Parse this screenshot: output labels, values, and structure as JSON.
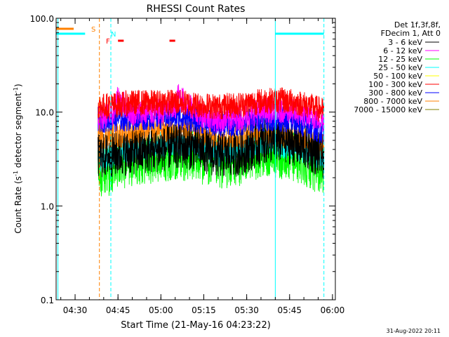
{
  "chart_data": {
    "type": "line",
    "title": "RHESSI Count Rates",
    "xlabel": "Start Time (21-May-16 04:23:22)",
    "ylabel_parts": [
      "Count Rate (s",
      "-1",
      " detector segment",
      "-1",
      ")"
    ],
    "yscale": "log",
    "ylim": [
      0.1,
      100.0
    ],
    "xlim": [
      "04:23:22",
      "06:01:00"
    ],
    "xticks": [
      "04:30",
      "04:45",
      "05:00",
      "05:15",
      "05:30",
      "05:45",
      "06:00"
    ],
    "yticks": [
      "0.1",
      "1.0",
      "10.0",
      "100.0"
    ],
    "legend_header": [
      "Det 1f,3f,8f,",
      "FDecim 1, Att 0"
    ],
    "legend_position": "right",
    "footer": "31-Aug-2022 20:11",
    "series": [
      {
        "name": "3 - 6 keV",
        "color": "#000000",
        "x": [
          "04:38",
          "04:43",
          "04:50",
          "04:58",
          "05:05",
          "05:12",
          "05:20",
          "05:28",
          "05:36",
          "05:43",
          "05:50",
          "05:57"
        ],
        "y": [
          3.4,
          3.5,
          3.7,
          3.9,
          4.3,
          4.2,
          3.4,
          3.6,
          4.8,
          5.0,
          4.3,
          3.3
        ]
      },
      {
        "name": "6 - 12 keV",
        "color": "#ff00ff",
        "x": [
          "04:38",
          "04:43",
          "04:45",
          "04:50",
          "04:58",
          "05:05",
          "05:06",
          "05:12",
          "05:20",
          "05:28",
          "05:36",
          "05:43",
          "05:50",
          "05:57"
        ],
        "y": [
          9.0,
          9.2,
          14.0,
          9.8,
          9.9,
          11.0,
          15.0,
          10.0,
          8.2,
          8.8,
          10.5,
          10.5,
          9.5,
          8.3
        ]
      },
      {
        "name": "12 - 25 keV",
        "color": "#00ff00",
        "x": [
          "04:38",
          "04:43",
          "04:50",
          "04:58",
          "05:05",
          "05:12",
          "05:20",
          "05:28",
          "05:36",
          "05:43",
          "05:50",
          "05:57"
        ],
        "y": [
          2.2,
          2.5,
          3.1,
          3.3,
          3.6,
          3.4,
          2.8,
          3.1,
          3.9,
          3.6,
          3.1,
          2.4
        ]
      },
      {
        "name": "25 - 50 keV",
        "color": "#00ffff",
        "x": [
          "04:38",
          "04:43",
          "04:50",
          "04:58",
          "05:05",
          "05:12",
          "05:20",
          "05:28",
          "05:36",
          "05:43",
          "05:50",
          "05:57"
        ],
        "y": [
          3.1,
          3.5,
          4.0,
          4.4,
          4.7,
          4.5,
          3.6,
          4.0,
          4.9,
          4.4,
          3.8,
          3.1
        ]
      },
      {
        "name": "50 - 100 keV",
        "color": "#ffff00",
        "x": [],
        "y": []
      },
      {
        "name": "100 - 300 keV",
        "color": "#ff0000",
        "x": [
          "04:38",
          "04:43",
          "04:50",
          "04:58",
          "05:05",
          "05:12",
          "05:20",
          "05:28",
          "05:36",
          "05:43",
          "05:50",
          "05:57"
        ],
        "y": [
          11.5,
          11.8,
          12.5,
          12.6,
          12.8,
          12.0,
          11.4,
          12.0,
          13.2,
          13.3,
          12.2,
          10.3
        ]
      },
      {
        "name": "300 - 800 keV",
        "color": "#0000ff",
        "x": [
          "04:38",
          "04:43",
          "04:50",
          "04:58",
          "05:05",
          "05:12",
          "05:20",
          "05:28",
          "05:36",
          "05:43",
          "05:50",
          "05:57"
        ],
        "y": [
          8.3,
          8.4,
          8.6,
          8.9,
          9.1,
          8.3,
          7.4,
          7.6,
          8.7,
          8.4,
          7.4,
          6.2
        ]
      },
      {
        "name": "800 - 7000 keV",
        "color": "#ff8000",
        "x": [
          "04:38",
          "04:43",
          "04:50",
          "04:58",
          "05:05",
          "05:12",
          "05:20",
          "05:28",
          "05:36",
          "05:43",
          "05:50",
          "05:57"
        ],
        "y": [
          5.5,
          5.6,
          5.9,
          6.3,
          6.6,
          6.2,
          5.4,
          5.6,
          6.1,
          5.7,
          5.0,
          4.2
        ]
      },
      {
        "name": "7000 - 15000 keV",
        "color": "#808000",
        "x": [],
        "y": []
      }
    ],
    "flag_rows": [
      {
        "label": "S",
        "color": "#ff8000",
        "segments": [
          [
            "04:23:22",
            "04:29:30"
          ]
        ]
      },
      {
        "label": "N",
        "color": "#00ffff",
        "segments": [
          [
            "04:23:22",
            "04:33:30"
          ],
          [
            "05:40:00",
            "05:57:00"
          ]
        ]
      },
      {
        "label": "F",
        "color": "#ff0000",
        "segments": [
          [
            "04:45:00",
            "04:47:00"
          ],
          [
            "05:03:00",
            "05:05:00"
          ]
        ]
      }
    ],
    "vertical_lines": [
      {
        "time": "04:24:00",
        "color": "#00ffff",
        "style": "solid"
      },
      {
        "time": "04:38:30",
        "color": "#ff8000",
        "style": "dashed"
      },
      {
        "time": "04:42:30",
        "color": "#00ffff",
        "style": "dashed"
      },
      {
        "time": "05:40:00",
        "color": "#00ffff",
        "style": "solid"
      },
      {
        "time": "05:57:00",
        "color": "#00ffff",
        "style": "dashed"
      }
    ]
  }
}
